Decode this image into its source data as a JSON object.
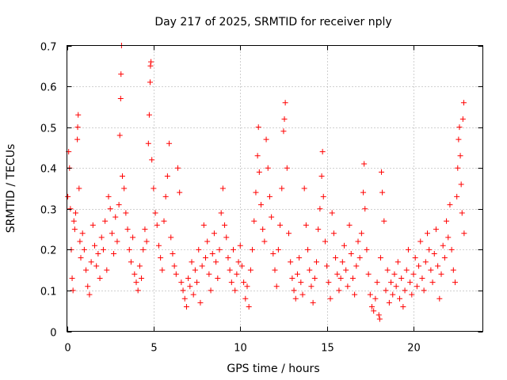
{
  "chart_data": {
    "type": "scatter",
    "title": "Day 217 of 2025, SRMTID for receiver nply",
    "xlabel": "GPS time / hours",
    "ylabel": "SRMTID / TECUs",
    "xlim": [
      0,
      24
    ],
    "ylim": [
      0,
      0.7
    ],
    "xticks": [
      0,
      5,
      10,
      15,
      20
    ],
    "yticks": [
      0,
      0.1,
      0.2,
      0.3,
      0.4,
      0.5,
      0.6,
      0.7
    ],
    "grid": true,
    "marker": "+",
    "color": "#ff0000",
    "series": [
      {
        "name": "SRMTID",
        "points": [
          [
            0.05,
            0.33
          ],
          [
            0.1,
            0.44
          ],
          [
            0.15,
            0.4
          ],
          [
            0.2,
            0.3
          ],
          [
            0.25,
            0.2
          ],
          [
            0.3,
            0.13
          ],
          [
            0.35,
            0.1
          ],
          [
            0.4,
            0.27
          ],
          [
            0.45,
            0.25
          ],
          [
            0.5,
            0.29
          ],
          [
            0.6,
            0.47
          ],
          [
            0.62,
            0.5
          ],
          [
            0.65,
            0.53
          ],
          [
            0.7,
            0.35
          ],
          [
            0.75,
            0.22
          ],
          [
            0.8,
            0.18
          ],
          [
            0.9,
            0.24
          ],
          [
            1.0,
            0.2
          ],
          [
            1.1,
            0.15
          ],
          [
            1.2,
            0.11
          ],
          [
            1.3,
            0.09
          ],
          [
            1.4,
            0.17
          ],
          [
            1.5,
            0.26
          ],
          [
            1.6,
            0.21
          ],
          [
            1.7,
            0.16
          ],
          [
            1.8,
            0.19
          ],
          [
            1.9,
            0.13
          ],
          [
            2.0,
            0.23
          ],
          [
            2.1,
            0.2
          ],
          [
            2.2,
            0.27
          ],
          [
            2.3,
            0.15
          ],
          [
            2.4,
            0.33
          ],
          [
            2.5,
            0.3
          ],
          [
            2.6,
            0.24
          ],
          [
            2.7,
            0.19
          ],
          [
            2.8,
            0.28
          ],
          [
            2.9,
            0.22
          ],
          [
            3.0,
            0.31
          ],
          [
            3.05,
            0.48
          ],
          [
            3.1,
            0.57
          ],
          [
            3.12,
            0.63
          ],
          [
            3.15,
            0.7
          ],
          [
            3.2,
            0.38
          ],
          [
            3.3,
            0.35
          ],
          [
            3.4,
            0.29
          ],
          [
            3.5,
            0.25
          ],
          [
            3.6,
            0.2
          ],
          [
            3.7,
            0.17
          ],
          [
            3.8,
            0.23
          ],
          [
            3.9,
            0.14
          ],
          [
            4.0,
            0.12
          ],
          [
            4.1,
            0.1
          ],
          [
            4.2,
            0.16
          ],
          [
            4.3,
            0.13
          ],
          [
            4.4,
            0.2
          ],
          [
            4.5,
            0.25
          ],
          [
            4.6,
            0.22
          ],
          [
            4.7,
            0.46
          ],
          [
            4.75,
            0.53
          ],
          [
            4.8,
            0.61
          ],
          [
            4.82,
            0.65
          ],
          [
            4.85,
            0.66
          ],
          [
            4.9,
            0.42
          ],
          [
            5.0,
            0.35
          ],
          [
            5.1,
            0.29
          ],
          [
            5.2,
            0.26
          ],
          [
            5.3,
            0.21
          ],
          [
            5.4,
            0.18
          ],
          [
            5.5,
            0.15
          ],
          [
            5.6,
            0.27
          ],
          [
            5.7,
            0.33
          ],
          [
            5.8,
            0.38
          ],
          [
            5.9,
            0.46
          ],
          [
            6.0,
            0.23
          ],
          [
            6.1,
            0.19
          ],
          [
            6.2,
            0.16
          ],
          [
            6.3,
            0.14
          ],
          [
            6.4,
            0.4
          ],
          [
            6.5,
            0.34
          ],
          [
            6.6,
            0.12
          ],
          [
            6.7,
            0.1
          ],
          [
            6.8,
            0.08
          ],
          [
            6.9,
            0.06
          ],
          [
            7.0,
            0.13
          ],
          [
            7.1,
            0.11
          ],
          [
            7.2,
            0.17
          ],
          [
            7.3,
            0.09
          ],
          [
            7.4,
            0.15
          ],
          [
            7.5,
            0.12
          ],
          [
            7.6,
            0.2
          ],
          [
            7.7,
            0.07
          ],
          [
            7.8,
            0.16
          ],
          [
            7.9,
            0.26
          ],
          [
            8.0,
            0.18
          ],
          [
            8.1,
            0.22
          ],
          [
            8.2,
            0.14
          ],
          [
            8.3,
            0.1
          ],
          [
            8.4,
            0.19
          ],
          [
            8.5,
            0.24
          ],
          [
            8.6,
            0.17
          ],
          [
            8.7,
            0.13
          ],
          [
            8.8,
            0.2
          ],
          [
            8.9,
            0.29
          ],
          [
            9.0,
            0.35
          ],
          [
            9.1,
            0.26
          ],
          [
            9.2,
            0.23
          ],
          [
            9.3,
            0.18
          ],
          [
            9.4,
            0.15
          ],
          [
            9.5,
            0.12
          ],
          [
            9.6,
            0.2
          ],
          [
            9.7,
            0.1
          ],
          [
            9.8,
            0.14
          ],
          [
            9.9,
            0.17
          ],
          [
            10.0,
            0.21
          ],
          [
            10.1,
            0.16
          ],
          [
            10.2,
            0.12
          ],
          [
            10.3,
            0.08
          ],
          [
            10.4,
            0.11
          ],
          [
            10.5,
            0.06
          ],
          [
            10.6,
            0.15
          ],
          [
            10.7,
            0.2
          ],
          [
            10.8,
            0.27
          ],
          [
            10.9,
            0.34
          ],
          [
            11.0,
            0.43
          ],
          [
            11.05,
            0.5
          ],
          [
            11.1,
            0.39
          ],
          [
            11.2,
            0.31
          ],
          [
            11.3,
            0.25
          ],
          [
            11.4,
            0.22
          ],
          [
            11.5,
            0.47
          ],
          [
            11.6,
            0.4
          ],
          [
            11.7,
            0.33
          ],
          [
            11.8,
            0.28
          ],
          [
            11.9,
            0.19
          ],
          [
            12.0,
            0.15
          ],
          [
            12.1,
            0.11
          ],
          [
            12.2,
            0.2
          ],
          [
            12.3,
            0.26
          ],
          [
            12.4,
            0.35
          ],
          [
            12.5,
            0.49
          ],
          [
            12.55,
            0.52
          ],
          [
            12.6,
            0.56
          ],
          [
            12.7,
            0.4
          ],
          [
            12.8,
            0.24
          ],
          [
            12.9,
            0.17
          ],
          [
            13.0,
            0.13
          ],
          [
            13.1,
            0.1
          ],
          [
            13.2,
            0.08
          ],
          [
            13.3,
            0.14
          ],
          [
            13.4,
            0.18
          ],
          [
            13.5,
            0.12
          ],
          [
            13.6,
            0.09
          ],
          [
            13.7,
            0.35
          ],
          [
            13.8,
            0.26
          ],
          [
            13.9,
            0.2
          ],
          [
            14.0,
            0.15
          ],
          [
            14.1,
            0.11
          ],
          [
            14.2,
            0.07
          ],
          [
            14.3,
            0.13
          ],
          [
            14.4,
            0.17
          ],
          [
            14.5,
            0.25
          ],
          [
            14.6,
            0.3
          ],
          [
            14.7,
            0.38
          ],
          [
            14.75,
            0.44
          ],
          [
            14.8,
            0.33
          ],
          [
            14.9,
            0.22
          ],
          [
            15.0,
            0.16
          ],
          [
            15.1,
            0.12
          ],
          [
            15.2,
            0.08
          ],
          [
            15.3,
            0.29
          ],
          [
            15.4,
            0.24
          ],
          [
            15.5,
            0.18
          ],
          [
            15.6,
            0.14
          ],
          [
            15.7,
            0.1
          ],
          [
            15.8,
            0.13
          ],
          [
            15.9,
            0.17
          ],
          [
            16.0,
            0.21
          ],
          [
            16.1,
            0.15
          ],
          [
            16.2,
            0.11
          ],
          [
            16.3,
            0.26
          ],
          [
            16.4,
            0.19
          ],
          [
            16.5,
            0.13
          ],
          [
            16.6,
            0.09
          ],
          [
            16.7,
            0.16
          ],
          [
            16.8,
            0.22
          ],
          [
            16.9,
            0.18
          ],
          [
            17.0,
            0.24
          ],
          [
            17.1,
            0.34
          ],
          [
            17.15,
            0.41
          ],
          [
            17.2,
            0.3
          ],
          [
            17.3,
            0.2
          ],
          [
            17.4,
            0.14
          ],
          [
            17.5,
            0.09
          ],
          [
            17.6,
            0.06
          ],
          [
            17.7,
            0.05
          ],
          [
            17.8,
            0.08
          ],
          [
            17.9,
            0.12
          ],
          [
            18.0,
            0.04
          ],
          [
            18.05,
            0.03
          ],
          [
            18.1,
            0.18
          ],
          [
            18.15,
            0.39
          ],
          [
            18.2,
            0.34
          ],
          [
            18.3,
            0.27
          ],
          [
            18.4,
            0.1
          ],
          [
            18.5,
            0.15
          ],
          [
            18.6,
            0.07
          ],
          [
            18.7,
            0.12
          ],
          [
            18.8,
            0.09
          ],
          [
            18.9,
            0.14
          ],
          [
            19.0,
            0.11
          ],
          [
            19.1,
            0.17
          ],
          [
            19.2,
            0.08
          ],
          [
            19.3,
            0.13
          ],
          [
            19.4,
            0.06
          ],
          [
            19.5,
            0.1
          ],
          [
            19.6,
            0.15
          ],
          [
            19.7,
            0.2
          ],
          [
            19.8,
            0.12
          ],
          [
            19.9,
            0.09
          ],
          [
            20.0,
            0.14
          ],
          [
            20.1,
            0.18
          ],
          [
            20.2,
            0.11
          ],
          [
            20.3,
            0.16
          ],
          [
            20.4,
            0.22
          ],
          [
            20.5,
            0.13
          ],
          [
            20.6,
            0.1
          ],
          [
            20.7,
            0.17
          ],
          [
            20.8,
            0.24
          ],
          [
            20.9,
            0.2
          ],
          [
            21.0,
            0.15
          ],
          [
            21.1,
            0.12
          ],
          [
            21.2,
            0.19
          ],
          [
            21.3,
            0.25
          ],
          [
            21.4,
            0.16
          ],
          [
            21.5,
            0.08
          ],
          [
            21.6,
            0.14
          ],
          [
            21.7,
            0.21
          ],
          [
            21.8,
            0.18
          ],
          [
            21.9,
            0.27
          ],
          [
            22.0,
            0.23
          ],
          [
            22.1,
            0.31
          ],
          [
            22.2,
            0.2
          ],
          [
            22.3,
            0.15
          ],
          [
            22.4,
            0.12
          ],
          [
            22.5,
            0.33
          ],
          [
            22.55,
            0.4
          ],
          [
            22.6,
            0.47
          ],
          [
            22.65,
            0.5
          ],
          [
            22.7,
            0.43
          ],
          [
            22.75,
            0.36
          ],
          [
            22.8,
            0.29
          ],
          [
            22.85,
            0.52
          ],
          [
            22.9,
            0.56
          ],
          [
            22.92,
            0.24
          ]
        ]
      }
    ]
  }
}
